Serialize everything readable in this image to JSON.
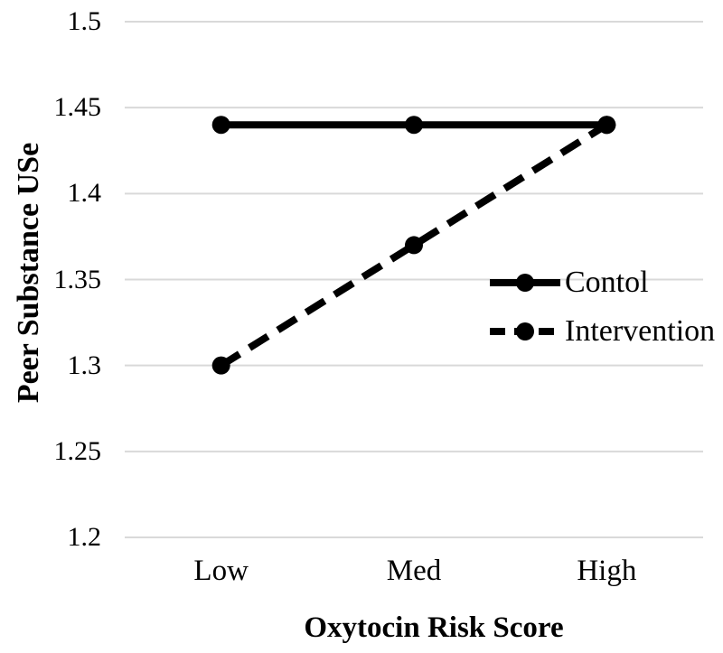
{
  "chart_data": {
    "type": "line",
    "title": "",
    "xlabel": "Oxytocin Risk Score",
    "ylabel": "Peer Substance USe",
    "categories": [
      "Low",
      "Med",
      "High"
    ],
    "series": [
      {
        "name": "Contol",
        "line_style": "solid",
        "marker": "filled-circle",
        "values": [
          1.44,
          1.44,
          1.44
        ]
      },
      {
        "name": "Intervention",
        "line_style": "dashed",
        "marker": "filled-circle",
        "values": [
          1.3,
          1.37,
          1.44
        ]
      }
    ],
    "ylim": [
      1.2,
      1.5
    ],
    "ytick_labels": [
      "1.5",
      "1.45",
      "1.4",
      "1.35",
      "1.3",
      "1.25",
      "1.2"
    ],
    "ytick_values": [
      1.5,
      1.45,
      1.4,
      1.35,
      1.3,
      1.25,
      1.2
    ],
    "grid": true,
    "legend": {
      "position": "middle-right",
      "entries": [
        "Contol",
        "Intervention"
      ]
    },
    "colors": {
      "series": "#000000",
      "gridline": "#d9d9d9",
      "background": "#ffffff",
      "text": "#000000"
    }
  }
}
